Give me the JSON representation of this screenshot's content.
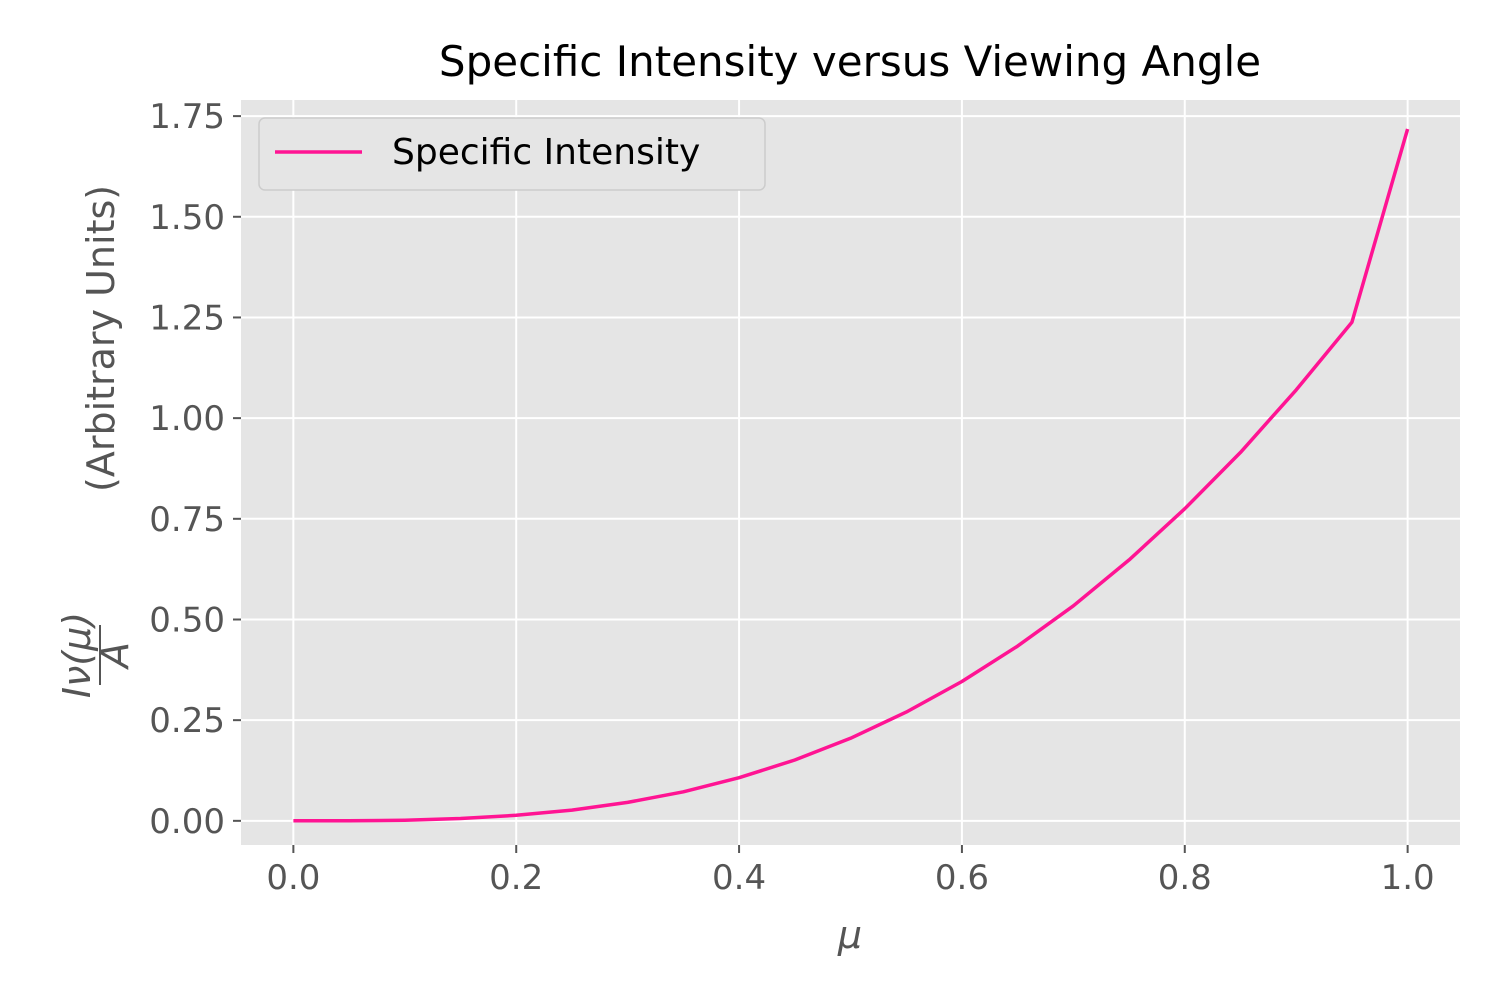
{
  "chart_data": {
    "type": "line",
    "title": "Specific Intensity versus Viewing Angle",
    "xlabel": "μ",
    "ylabel": {
      "numerator": "Iν(μ)",
      "denominator": "A",
      "units": "(Arbitrary Units)"
    },
    "xlim": [
      -0.047,
      1.047
    ],
    "ylim": [
      -0.06,
      1.79
    ],
    "x_ticks": [
      "0.0",
      "0.2",
      "0.4",
      "0.6",
      "0.8",
      "1.0"
    ],
    "y_ticks": [
      "0.00",
      "0.25",
      "0.50",
      "0.75",
      "1.00",
      "1.25",
      "1.50",
      "1.75"
    ],
    "grid": true,
    "legend_position": "top-left",
    "series": [
      {
        "name": "Specific Intensity",
        "color": "#ff1493",
        "x": [
          0.0,
          0.05,
          0.1,
          0.15,
          0.2,
          0.25,
          0.3,
          0.35,
          0.4,
          0.45,
          0.5,
          0.55,
          0.6,
          0.65,
          0.7,
          0.75,
          0.8,
          0.85,
          0.9,
          0.95,
          1.0
        ],
        "y": [
          0.0,
          0.0002,
          0.0017,
          0.0058,
          0.0137,
          0.0266,
          0.0457,
          0.0721,
          0.107,
          0.151,
          0.205,
          0.27,
          0.346,
          0.434,
          0.534,
          0.648,
          0.775,
          0.915,
          1.07,
          1.238,
          1.718
        ]
      }
    ]
  },
  "colors": {
    "plot_background": "#e5e5e5",
    "grid": "#ffffff",
    "tick_text": "#555555"
  }
}
